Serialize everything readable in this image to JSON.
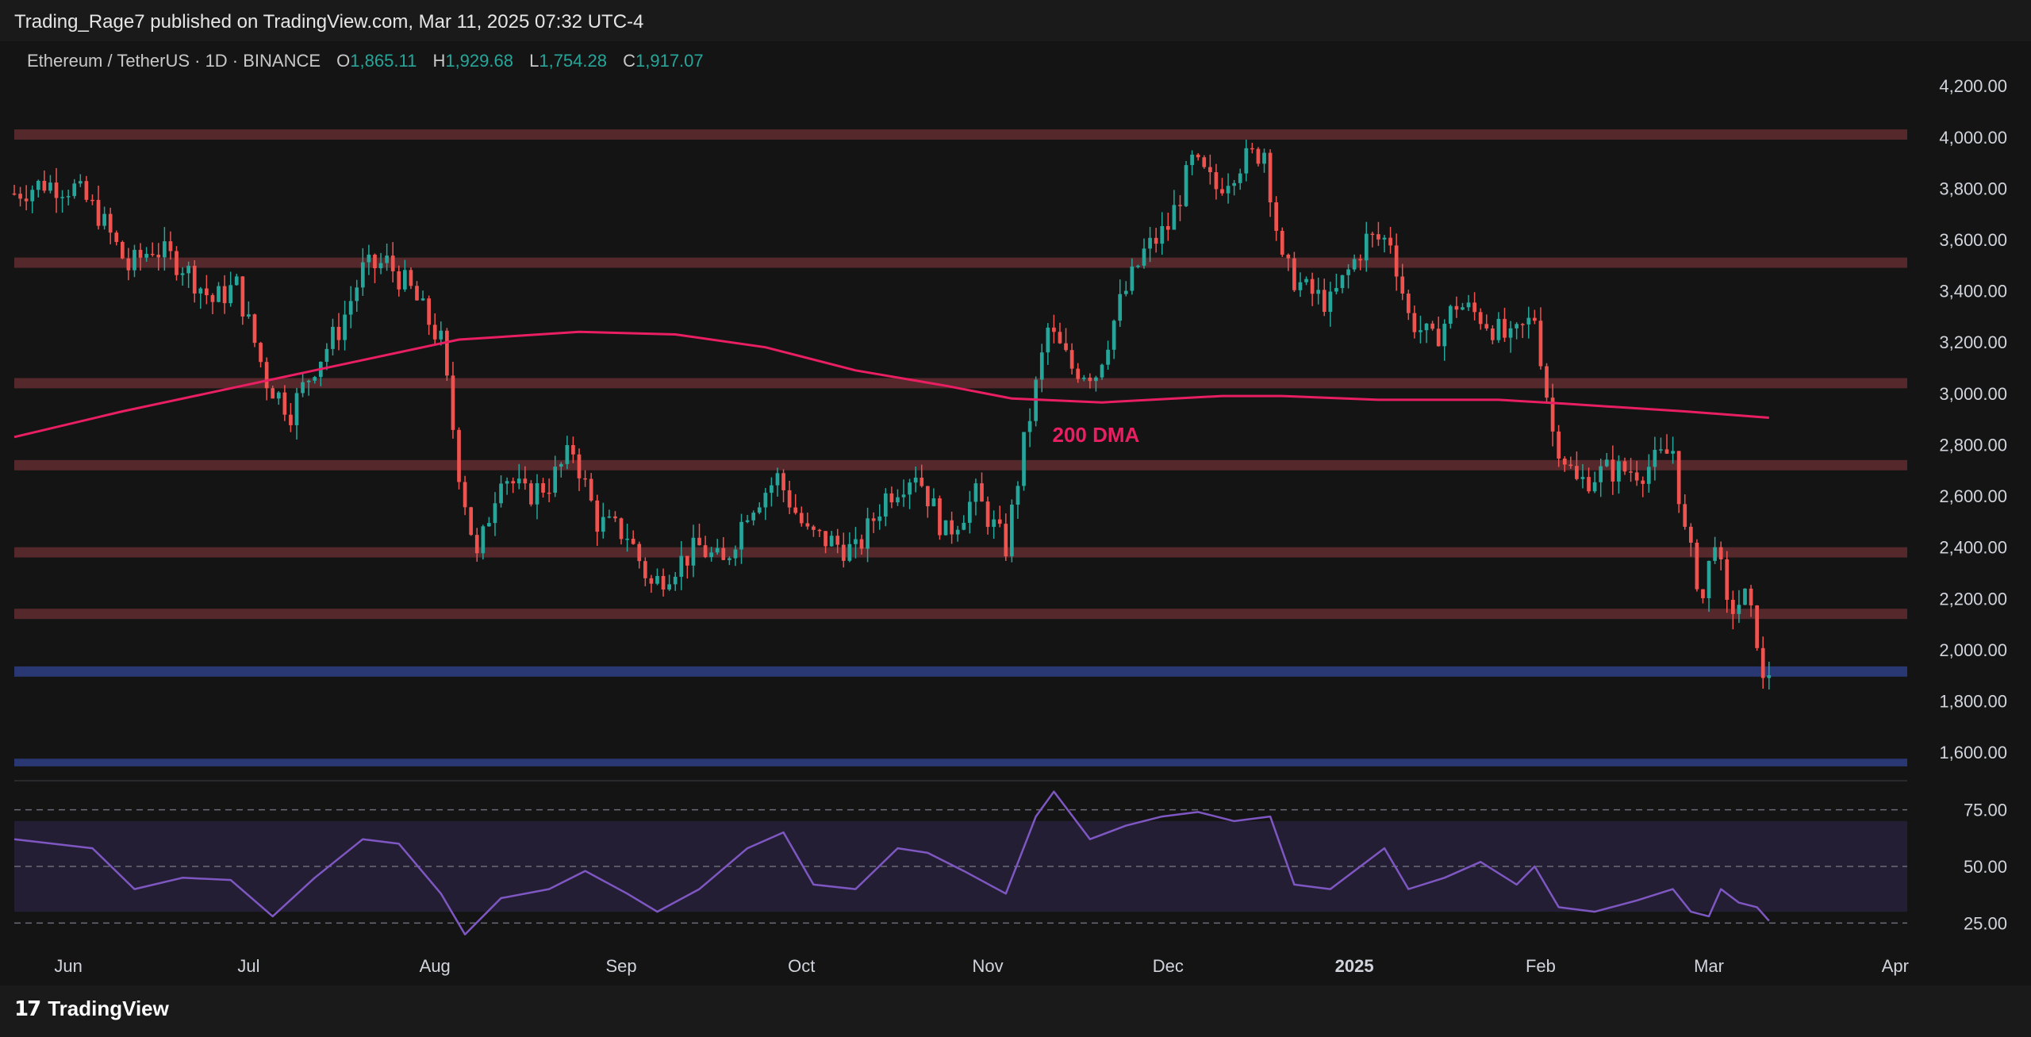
{
  "header": {
    "published_line": "Trading_Rage7 published on TradingView.com, Mar 11, 2025 07:32 UTC-4"
  },
  "legend": {
    "symbol": "Ethereum / TetherUS · 1D · BINANCE",
    "open_label": "O",
    "open": "1,865.11",
    "high_label": "H",
    "high": "1,929.68",
    "low_label": "L",
    "low": "1,754.28",
    "close_label": "C",
    "close": "1,917.07"
  },
  "footer": {
    "logo_mark": "17",
    "brand": "TradingView"
  },
  "colors": {
    "up": "#26a69a",
    "down": "#ef5350",
    "dma": "#e91e63",
    "resistance_zone": "#5c2a2e",
    "support_zone": "#2a3a78",
    "rsi_line": "#7e57c2"
  },
  "chart_data": {
    "type": "candlestick",
    "symbol": "ETHUSDT",
    "interval": "1D",
    "ylim": [
      1520,
      4250
    ],
    "y_ticks": [
      {
        "value": 4200,
        "label": "4,200.00"
      },
      {
        "value": 4000,
        "label": "4,000.00"
      },
      {
        "value": 3800,
        "label": "3,800.00"
      },
      {
        "value": 3600,
        "label": "3,600.00"
      },
      {
        "value": 3400,
        "label": "3,400.00"
      },
      {
        "value": 3200,
        "label": "3,200.00"
      },
      {
        "value": 3000,
        "label": "3,000.00"
      },
      {
        "value": 2800,
        "label": "2,800.00"
      },
      {
        "value": 2600,
        "label": "2,600.00"
      },
      {
        "value": 2400,
        "label": "2,400.00"
      },
      {
        "value": 2200,
        "label": "2,200.00"
      },
      {
        "value": 2000,
        "label": "2,000.00"
      },
      {
        "value": 1800,
        "label": "1,800.00"
      },
      {
        "value": 1600,
        "label": "1,600.00"
      }
    ],
    "x_ticks": [
      {
        "date": "2024-06-01",
        "label": "Jun"
      },
      {
        "date": "2024-07-01",
        "label": "Jul"
      },
      {
        "date": "2024-08-01",
        "label": "Aug"
      },
      {
        "date": "2024-09-01",
        "label": "Sep"
      },
      {
        "date": "2024-10-01",
        "label": "Oct"
      },
      {
        "date": "2024-11-01",
        "label": "Nov"
      },
      {
        "date": "2024-12-01",
        "label": "Dec"
      },
      {
        "date": "2025-01-01",
        "label": "2025"
      },
      {
        "date": "2025-02-01",
        "label": "Feb"
      },
      {
        "date": "2025-03-01",
        "label": "Mar"
      },
      {
        "date": "2025-04-01",
        "label": "Apr"
      }
    ],
    "date_range": [
      "2024-05-23",
      "2025-04-03"
    ],
    "resistance_zones": [
      [
        3990,
        4030
      ],
      [
        3490,
        3530
      ],
      [
        3020,
        3060
      ],
      [
        2700,
        2740
      ],
      [
        2360,
        2400
      ],
      [
        2120,
        2160
      ]
    ],
    "support_zones": [
      [
        1895,
        1935
      ],
      [
        1545,
        1575
      ]
    ],
    "dma_label": "200 DMA",
    "dma_label_date": "2024-11-19",
    "dma_label_value": 2810,
    "dma_200": [
      {
        "date": "2024-05-23",
        "value": 2830
      },
      {
        "date": "2024-06-10",
        "value": 2930
      },
      {
        "date": "2024-06-30",
        "value": 3030
      },
      {
        "date": "2024-07-20",
        "value": 3130
      },
      {
        "date": "2024-08-05",
        "value": 3210
      },
      {
        "date": "2024-08-25",
        "value": 3240
      },
      {
        "date": "2024-09-10",
        "value": 3230
      },
      {
        "date": "2024-09-25",
        "value": 3180
      },
      {
        "date": "2024-10-10",
        "value": 3090
      },
      {
        "date": "2024-10-25",
        "value": 3030
      },
      {
        "date": "2024-11-05",
        "value": 2980
      },
      {
        "date": "2024-11-20",
        "value": 2965
      },
      {
        "date": "2024-12-10",
        "value": 2990
      },
      {
        "date": "2024-12-20",
        "value": 2990
      },
      {
        "date": "2025-01-05",
        "value": 2975
      },
      {
        "date": "2025-01-25",
        "value": 2975
      },
      {
        "date": "2025-02-05",
        "value": 2960
      },
      {
        "date": "2025-02-25",
        "value": 2930
      },
      {
        "date": "2025-03-11",
        "value": 2905
      }
    ],
    "price_path": [
      {
        "date": "2024-05-23",
        "value": 3780
      },
      {
        "date": "2024-05-28",
        "value": 3820
      },
      {
        "date": "2024-06-02",
        "value": 3800
      },
      {
        "date": "2024-06-06",
        "value": 3700
      },
      {
        "date": "2024-06-11",
        "value": 3490
      },
      {
        "date": "2024-06-15",
        "value": 3570
      },
      {
        "date": "2024-06-20",
        "value": 3500
      },
      {
        "date": "2024-06-25",
        "value": 3360
      },
      {
        "date": "2024-06-29",
        "value": 3420
      },
      {
        "date": "2024-07-04",
        "value": 3050
      },
      {
        "date": "2024-07-08",
        "value": 2930
      },
      {
        "date": "2024-07-12",
        "value": 3110
      },
      {
        "date": "2024-07-16",
        "value": 3250
      },
      {
        "date": "2024-07-20",
        "value": 3480
      },
      {
        "date": "2024-07-24",
        "value": 3510
      },
      {
        "date": "2024-07-28",
        "value": 3400
      },
      {
        "date": "2024-08-02",
        "value": 3200
      },
      {
        "date": "2024-08-05",
        "value": 2700
      },
      {
        "date": "2024-08-08",
        "value": 2350
      },
      {
        "date": "2024-08-12",
        "value": 2700
      },
      {
        "date": "2024-08-16",
        "value": 2600
      },
      {
        "date": "2024-08-20",
        "value": 2650
      },
      {
        "date": "2024-08-24",
        "value": 2780
      },
      {
        "date": "2024-08-28",
        "value": 2500
      },
      {
        "date": "2024-09-02",
        "value": 2450
      },
      {
        "date": "2024-09-06",
        "value": 2250
      },
      {
        "date": "2024-09-10",
        "value": 2330
      },
      {
        "date": "2024-09-14",
        "value": 2400
      },
      {
        "date": "2024-09-18",
        "value": 2330
      },
      {
        "date": "2024-09-22",
        "value": 2550
      },
      {
        "date": "2024-09-27",
        "value": 2670
      },
      {
        "date": "2024-10-02",
        "value": 2450
      },
      {
        "date": "2024-10-06",
        "value": 2420
      },
      {
        "date": "2024-10-10",
        "value": 2380
      },
      {
        "date": "2024-10-15",
        "value": 2600
      },
      {
        "date": "2024-10-20",
        "value": 2700
      },
      {
        "date": "2024-10-25",
        "value": 2450
      },
      {
        "date": "2024-10-30",
        "value": 2600
      },
      {
        "date": "2024-11-04",
        "value": 2400
      },
      {
        "date": "2024-11-07",
        "value": 2800
      },
      {
        "date": "2024-11-11",
        "value": 3250
      },
      {
        "date": "2024-11-15",
        "value": 3100
      },
      {
        "date": "2024-11-19",
        "value": 3080
      },
      {
        "date": "2024-11-23",
        "value": 3350
      },
      {
        "date": "2024-11-27",
        "value": 3550
      },
      {
        "date": "2024-12-01",
        "value": 3650
      },
      {
        "date": "2024-12-05",
        "value": 3900
      },
      {
        "date": "2024-12-09",
        "value": 3800
      },
      {
        "date": "2024-12-13",
        "value": 3900
      },
      {
        "date": "2024-12-17",
        "value": 3950
      },
      {
        "date": "2024-12-20",
        "value": 3500
      },
      {
        "date": "2024-12-24",
        "value": 3400
      },
      {
        "date": "2024-12-28",
        "value": 3350
      },
      {
        "date": "2025-01-03",
        "value": 3600
      },
      {
        "date": "2025-01-07",
        "value": 3600
      },
      {
        "date": "2025-01-10",
        "value": 3300
      },
      {
        "date": "2025-01-14",
        "value": 3200
      },
      {
        "date": "2025-01-18",
        "value": 3350
      },
      {
        "date": "2025-01-22",
        "value": 3300
      },
      {
        "date": "2025-01-27",
        "value": 3200
      },
      {
        "date": "2025-01-31",
        "value": 3300
      },
      {
        "date": "2025-02-03",
        "value": 2850
      },
      {
        "date": "2025-02-07",
        "value": 2650
      },
      {
        "date": "2025-02-12",
        "value": 2700
      },
      {
        "date": "2025-02-18",
        "value": 2700
      },
      {
        "date": "2025-02-23",
        "value": 2780
      },
      {
        "date": "2025-02-25",
        "value": 2450
      },
      {
        "date": "2025-02-28",
        "value": 2200
      },
      {
        "date": "2025-03-02",
        "value": 2450
      },
      {
        "date": "2025-03-04",
        "value": 2150
      },
      {
        "date": "2025-03-07",
        "value": 2200
      },
      {
        "date": "2025-03-09",
        "value": 2050
      },
      {
        "date": "2025-03-10",
        "value": 1860
      },
      {
        "date": "2025-03-11",
        "value": 1917
      }
    ],
    "rsi": {
      "ylim": [
        15,
        85
      ],
      "levels": [
        75,
        50,
        25
      ],
      "band": [
        30,
        70
      ],
      "tick_labels": [
        "75.00",
        "50.00",
        "25.00"
      ],
      "points": [
        {
          "date": "2024-05-23",
          "value": 62
        },
        {
          "date": "2024-06-05",
          "value": 58
        },
        {
          "date": "2024-06-12",
          "value": 40
        },
        {
          "date": "2024-06-20",
          "value": 45
        },
        {
          "date": "2024-06-28",
          "value": 44
        },
        {
          "date": "2024-07-05",
          "value": 28
        },
        {
          "date": "2024-07-12",
          "value": 45
        },
        {
          "date": "2024-07-20",
          "value": 62
        },
        {
          "date": "2024-07-26",
          "value": 60
        },
        {
          "date": "2024-08-02",
          "value": 38
        },
        {
          "date": "2024-08-06",
          "value": 20
        },
        {
          "date": "2024-08-12",
          "value": 36
        },
        {
          "date": "2024-08-20",
          "value": 40
        },
        {
          "date": "2024-08-26",
          "value": 48
        },
        {
          "date": "2024-09-02",
          "value": 38
        },
        {
          "date": "2024-09-07",
          "value": 30
        },
        {
          "date": "2024-09-14",
          "value": 40
        },
        {
          "date": "2024-09-22",
          "value": 58
        },
        {
          "date": "2024-09-28",
          "value": 65
        },
        {
          "date": "2024-10-03",
          "value": 42
        },
        {
          "date": "2024-10-10",
          "value": 40
        },
        {
          "date": "2024-10-17",
          "value": 58
        },
        {
          "date": "2024-10-22",
          "value": 56
        },
        {
          "date": "2024-10-28",
          "value": 48
        },
        {
          "date": "2024-11-04",
          "value": 38
        },
        {
          "date": "2024-11-09",
          "value": 72
        },
        {
          "date": "2024-11-12",
          "value": 83
        },
        {
          "date": "2024-11-18",
          "value": 62
        },
        {
          "date": "2024-11-24",
          "value": 68
        },
        {
          "date": "2024-11-30",
          "value": 72
        },
        {
          "date": "2024-12-06",
          "value": 74
        },
        {
          "date": "2024-12-12",
          "value": 70
        },
        {
          "date": "2024-12-18",
          "value": 72
        },
        {
          "date": "2024-12-22",
          "value": 42
        },
        {
          "date": "2024-12-28",
          "value": 40
        },
        {
          "date": "2025-01-06",
          "value": 58
        },
        {
          "date": "2025-01-10",
          "value": 40
        },
        {
          "date": "2025-01-16",
          "value": 45
        },
        {
          "date": "2025-01-22",
          "value": 52
        },
        {
          "date": "2025-01-28",
          "value": 42
        },
        {
          "date": "2025-01-31",
          "value": 50
        },
        {
          "date": "2025-02-04",
          "value": 32
        },
        {
          "date": "2025-02-10",
          "value": 30
        },
        {
          "date": "2025-02-17",
          "value": 35
        },
        {
          "date": "2025-02-23",
          "value": 40
        },
        {
          "date": "2025-02-26",
          "value": 30
        },
        {
          "date": "2025-03-01",
          "value": 28
        },
        {
          "date": "2025-03-03",
          "value": 40
        },
        {
          "date": "2025-03-06",
          "value": 34
        },
        {
          "date": "2025-03-09",
          "value": 32
        },
        {
          "date": "2025-03-11",
          "value": 26
        }
      ]
    },
    "grid": false,
    "legend_position": "top-left"
  }
}
